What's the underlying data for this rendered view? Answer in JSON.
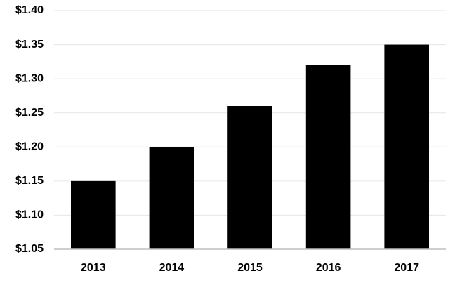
{
  "chart_data": {
    "type": "bar",
    "categories": [
      "2013",
      "2014",
      "2015",
      "2016",
      "2017"
    ],
    "values": [
      1.15,
      1.2,
      1.26,
      1.32,
      1.35
    ],
    "color": "#000000",
    "ylim": [
      1.05,
      1.4
    ],
    "yticks": [
      {
        "value": 1.05,
        "label": "$1.05"
      },
      {
        "value": 1.1,
        "label": "$1.10"
      },
      {
        "value": 1.15,
        "label": "$1.15"
      },
      {
        "value": 1.2,
        "label": "$1.20"
      },
      {
        "value": 1.25,
        "label": "$1.25"
      },
      {
        "value": 1.3,
        "label": "$1.30"
      },
      {
        "value": 1.35,
        "label": "$1.35"
      },
      {
        "value": 1.4,
        "label": "$1.40"
      }
    ],
    "grid": true
  }
}
